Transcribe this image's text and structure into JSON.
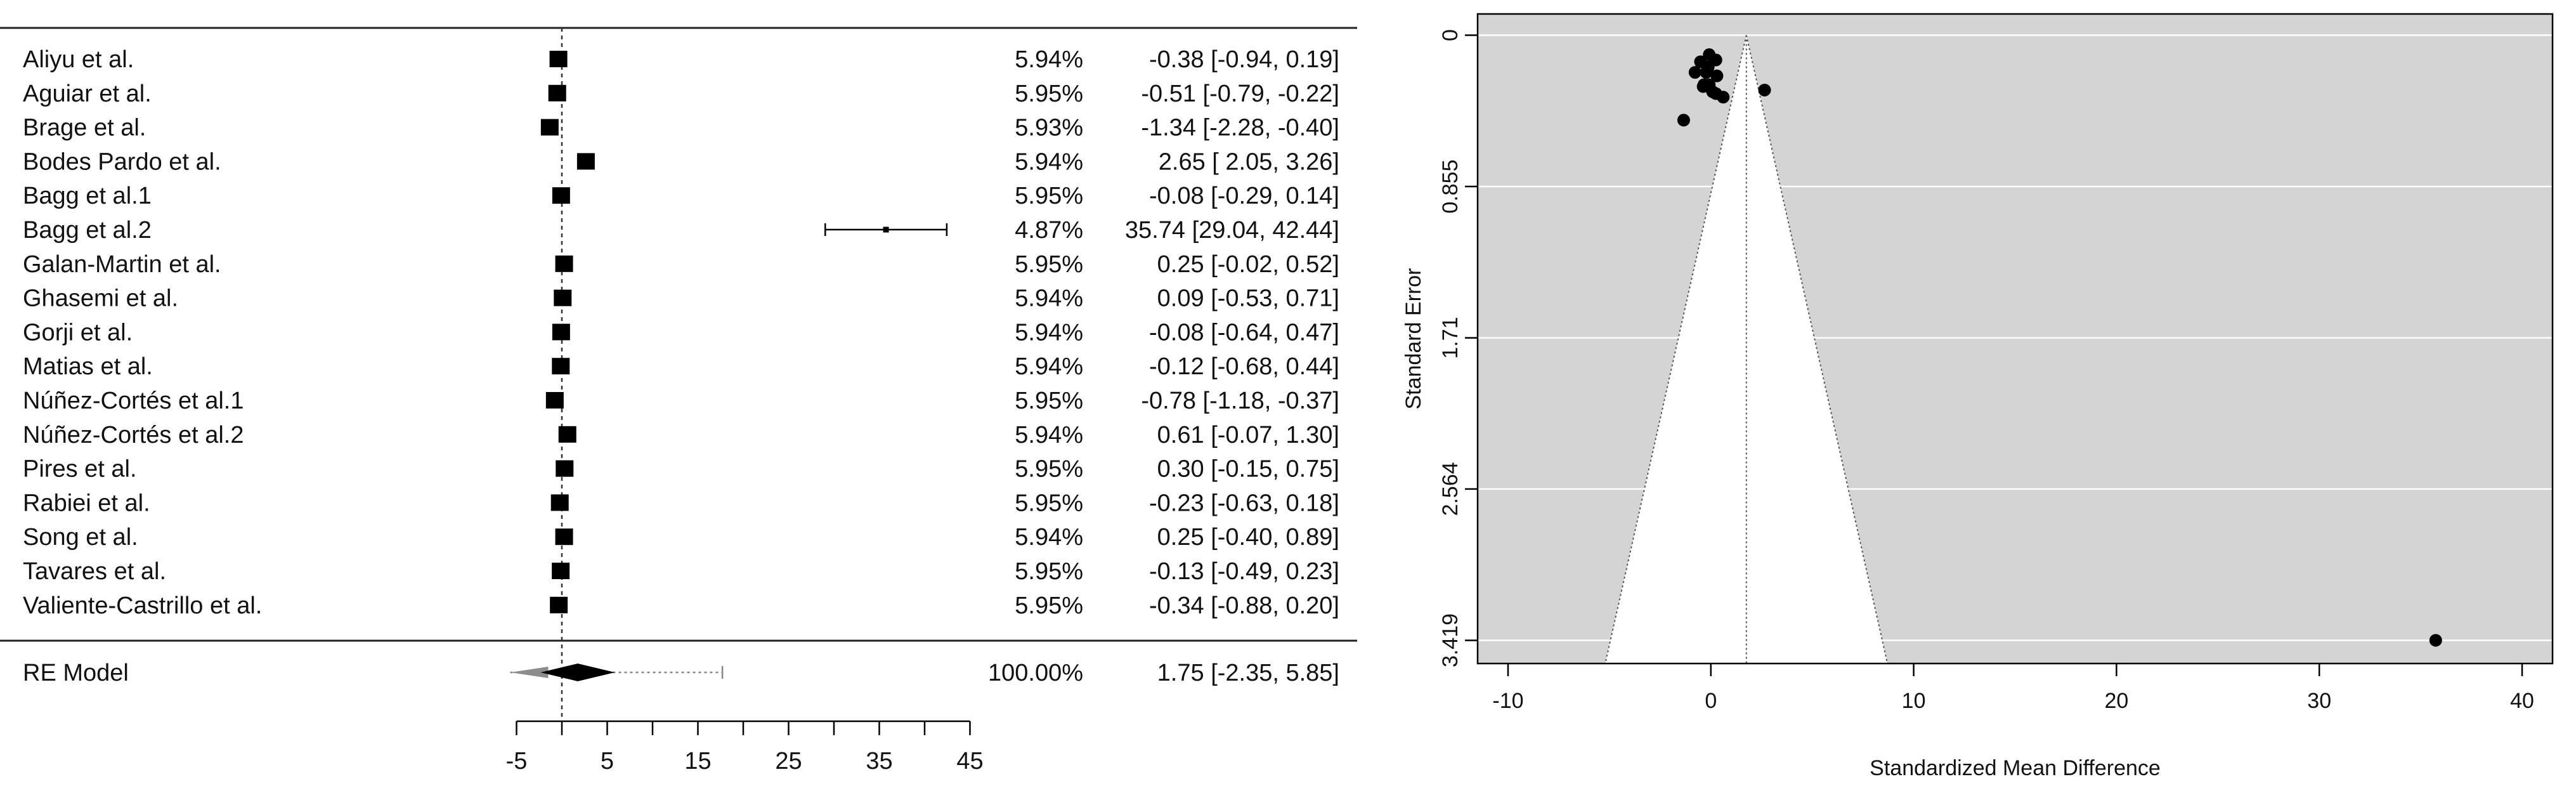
{
  "chart_data": [
    {
      "type": "forest",
      "studies": [
        {
          "label": "Aliyu et al.",
          "weight": "5.94%",
          "estimate": -0.38,
          "ci": [
            -0.94,
            0.19
          ],
          "ci_text": "-0.38 [-0.94,  0.19]"
        },
        {
          "label": "Aguiar et al.",
          "weight": "5.95%",
          "estimate": -0.51,
          "ci": [
            -0.79,
            -0.22
          ],
          "ci_text": "-0.51 [-0.79, -0.22]"
        },
        {
          "label": "Brage et al.",
          "weight": "5.93%",
          "estimate": -1.34,
          "ci": [
            -2.28,
            -0.4
          ],
          "ci_text": "-1.34 [-2.28, -0.40]"
        },
        {
          "label": "Bodes Pardo et al.",
          "weight": "5.94%",
          "estimate": 2.65,
          "ci": [
            2.05,
            3.26
          ],
          "ci_text": "2.65 [ 2.05,  3.26]"
        },
        {
          "label": "Bagg et al.1",
          "weight": "5.95%",
          "estimate": -0.08,
          "ci": [
            -0.29,
            0.14
          ],
          "ci_text": "-0.08 [-0.29,  0.14]"
        },
        {
          "label": "Bagg et al.2",
          "weight": "4.87%",
          "estimate": 35.74,
          "ci": [
            29.04,
            42.44
          ],
          "ci_text": "35.74 [29.04, 42.44]"
        },
        {
          "label": "Galan-Martin et al.",
          "weight": "5.95%",
          "estimate": 0.25,
          "ci": [
            -0.02,
            0.52
          ],
          "ci_text": "0.25 [-0.02,  0.52]"
        },
        {
          "label": "Ghasemi et al.",
          "weight": "5.94%",
          "estimate": 0.09,
          "ci": [
            -0.53,
            0.71
          ],
          "ci_text": "0.09 [-0.53,  0.71]"
        },
        {
          "label": "Gorji et al.",
          "weight": "5.94%",
          "estimate": -0.08,
          "ci": [
            -0.64,
            0.47
          ],
          "ci_text": "-0.08 [-0.64,  0.47]"
        },
        {
          "label": "Matias et al.",
          "weight": "5.94%",
          "estimate": -0.12,
          "ci": [
            -0.68,
            0.44
          ],
          "ci_text": "-0.12 [-0.68,  0.44]"
        },
        {
          "label": "Núñez-Cortés et al.1",
          "weight": "5.95%",
          "estimate": -0.78,
          "ci": [
            -1.18,
            -0.37
          ],
          "ci_text": "-0.78 [-1.18, -0.37]"
        },
        {
          "label": "Núñez-Cortés et al.2",
          "weight": "5.94%",
          "estimate": 0.61,
          "ci": [
            -0.07,
            1.3
          ],
          "ci_text": "0.61 [-0.07,  1.30]"
        },
        {
          "label": "Pires et al.",
          "weight": "5.95%",
          "estimate": 0.3,
          "ci": [
            -0.15,
            0.75
          ],
          "ci_text": "0.30 [-0.15,  0.75]"
        },
        {
          "label": "Rabiei et al.",
          "weight": "5.95%",
          "estimate": -0.23,
          "ci": [
            -0.63,
            0.18
          ],
          "ci_text": "-0.23 [-0.63,  0.18]"
        },
        {
          "label": "Song et al.",
          "weight": "5.94%",
          "estimate": 0.25,
          "ci": [
            -0.4,
            0.89
          ],
          "ci_text": "0.25 [-0.40,  0.89]"
        },
        {
          "label": "Tavares et al.",
          "weight": "5.95%",
          "estimate": -0.13,
          "ci": [
            -0.49,
            0.23
          ],
          "ci_text": "-0.13 [-0.49,  0.23]"
        },
        {
          "label": "Valiente-Castrillo et al.",
          "weight": "5.95%",
          "estimate": -0.34,
          "ci": [
            -0.88,
            0.2
          ],
          "ci_text": "-0.34 [-0.88,  0.20]"
        }
      ],
      "summary": {
        "label": "RE Model",
        "weight": "100.00%",
        "estimate": 1.75,
        "ci": [
          -2.35,
          5.85
        ],
        "ci_text": "1.75 [-2.35,  5.85]",
        "prediction_interval": [
          -5.7,
          17.7
        ]
      },
      "x_ticks": [
        -5,
        0,
        5,
        10,
        15,
        20,
        25,
        30,
        35,
        40,
        45
      ],
      "x_tick_labels": [
        "-5",
        "5",
        "15",
        "25",
        "35",
        "45"
      ],
      "reference_line": 0
    },
    {
      "type": "scatter",
      "subtype": "funnel",
      "xlabel": "Standardized Mean Difference",
      "ylabel": "Standard Error",
      "xlim": [
        -11.5,
        41.5
      ],
      "ylim": [
        3.55,
        -0.12
      ],
      "y_reversed": true,
      "x_ticks": [
        -10,
        0,
        10,
        20,
        30,
        40
      ],
      "y_ticks": [
        "0",
        "0.855",
        "1.71",
        "2.564",
        "3.419"
      ],
      "y_tick_values": [
        0,
        0.855,
        1.71,
        2.564,
        3.419
      ],
      "center_line": 1.75,
      "points": [
        {
          "x": -0.38,
          "y": 0.29
        },
        {
          "x": -0.51,
          "y": 0.15
        },
        {
          "x": -1.34,
          "y": 0.48
        },
        {
          "x": 2.65,
          "y": 0.31
        },
        {
          "x": -0.08,
          "y": 0.11
        },
        {
          "x": 35.74,
          "y": 3.419
        },
        {
          "x": 0.25,
          "y": 0.14
        },
        {
          "x": 0.09,
          "y": 0.32
        },
        {
          "x": -0.08,
          "y": 0.28
        },
        {
          "x": -0.12,
          "y": 0.29
        },
        {
          "x": -0.78,
          "y": 0.21
        },
        {
          "x": 0.61,
          "y": 0.35
        },
        {
          "x": 0.3,
          "y": 0.23
        },
        {
          "x": -0.23,
          "y": 0.21
        },
        {
          "x": 0.25,
          "y": 0.33
        },
        {
          "x": -0.13,
          "y": 0.18
        },
        {
          "x": -0.34,
          "y": 0.28
        }
      ],
      "colors": {
        "panel": "#d4d4d4",
        "funnel": "#ffffff",
        "grid": "#ffffff",
        "points": "#000000"
      }
    }
  ]
}
